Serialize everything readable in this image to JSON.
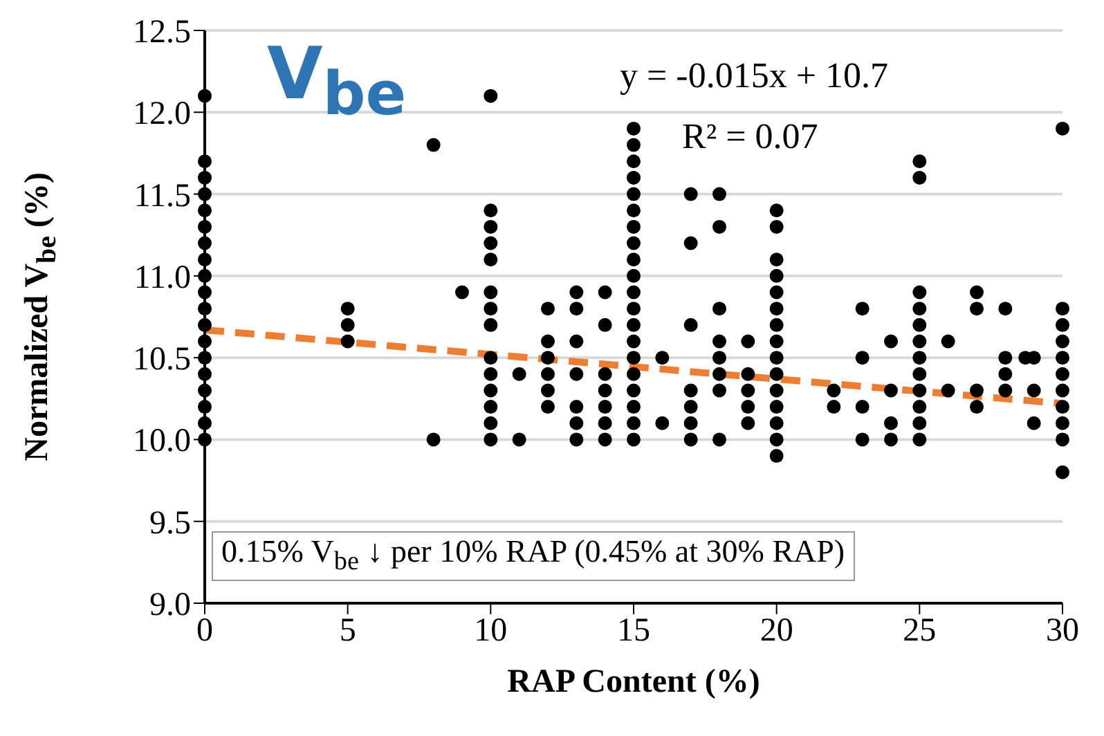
{
  "chart_data": {
    "type": "scatter",
    "xlabel": "RAP Content (%)",
    "ylabel": "Normalized  V$_{be}$ (%)",
    "xlim": [
      0,
      30
    ],
    "xticks": [
      0,
      5,
      10,
      15,
      20,
      25,
      30
    ],
    "ylim": [
      9.0,
      12.5
    ],
    "yticks": [
      {
        "value": 9.0,
        "label": "9.0"
      },
      {
        "value": 9.5,
        "label": "9.5"
      },
      {
        "value": 10.0,
        "label": "10.0"
      },
      {
        "value": 10.5,
        "label": "10.5"
      },
      {
        "value": 11.0,
        "label": "11.0"
      },
      {
        "value": 11.5,
        "label": "11.5"
      },
      {
        "value": 12.0,
        "label": "12.0"
      },
      {
        "value": 12.5,
        "label": "12.5"
      }
    ],
    "grid": "y",
    "marker": "circle",
    "annotations": [
      "V$_{be}$",
      "y = -0.015x  + 10.7",
      "R² = 0.07",
      "0.15% V$_{be}$ ↓ per 10% RAP (0.45% at 30% RAP)"
    ],
    "series": [
      {
        "color": "#000000",
        "x": [
          0,
          0,
          0,
          0,
          0,
          0,
          0,
          0,
          0,
          0,
          0,
          0,
          0,
          0,
          0,
          0,
          0,
          0,
          0,
          5,
          5,
          5,
          8,
          8,
          9,
          10,
          10,
          10,
          10,
          10,
          10,
          10,
          10,
          10,
          10,
          10,
          10,
          10,
          10,
          11,
          11,
          12,
          12,
          12,
          12,
          12,
          12,
          13,
          13,
          13,
          13,
          13,
          13,
          13,
          14,
          14,
          14,
          14,
          14,
          14,
          14,
          15,
          15,
          15,
          15,
          15,
          15,
          15,
          15,
          15,
          15,
          15,
          15,
          15,
          15,
          15,
          15,
          15,
          15,
          15,
          15,
          16,
          16,
          17,
          17,
          17,
          17,
          17,
          17,
          17,
          18,
          18,
          18,
          18,
          18,
          18,
          18,
          18,
          19,
          19,
          19,
          19,
          19,
          20,
          20,
          20,
          20,
          20,
          20,
          20,
          20,
          20,
          20,
          20,
          20,
          20,
          20,
          20,
          22,
          22,
          23,
          23,
          23,
          23,
          24,
          24,
          24,
          24,
          25,
          25,
          25,
          25,
          25,
          25,
          25,
          25,
          25,
          25,
          25,
          25,
          26,
          26,
          27,
          27,
          27,
          27,
          28,
          28,
          28,
          28,
          28.7,
          29,
          29,
          29,
          30,
          30,
          30,
          30,
          30,
          30,
          30,
          30,
          30,
          30,
          30
        ],
        "values": [
          10.0,
          10.1,
          10.2,
          10.3,
          10.4,
          10.5,
          10.6,
          10.7,
          10.8,
          10.9,
          11.0,
          11.1,
          11.2,
          11.3,
          11.4,
          11.5,
          11.6,
          11.7,
          12.1,
          10.6,
          10.7,
          10.8,
          10.0,
          11.8,
          10.9,
          10.0,
          10.1,
          10.2,
          10.3,
          10.4,
          10.5,
          10.7,
          10.8,
          10.9,
          11.1,
          11.2,
          11.3,
          11.4,
          12.1,
          10.0,
          10.4,
          10.2,
          10.3,
          10.4,
          10.5,
          10.6,
          10.8,
          10.0,
          10.1,
          10.2,
          10.4,
          10.6,
          10.8,
          10.9,
          10.0,
          10.1,
          10.2,
          10.3,
          10.4,
          10.7,
          10.9,
          10.0,
          10.1,
          10.2,
          10.3,
          10.4,
          10.5,
          10.6,
          10.7,
          10.8,
          10.9,
          11.0,
          11.1,
          11.2,
          11.3,
          11.4,
          11.5,
          11.6,
          11.7,
          11.8,
          11.9,
          10.1,
          10.5,
          10.0,
          10.1,
          10.2,
          10.3,
          10.7,
          11.2,
          11.5,
          10.0,
          10.3,
          10.4,
          10.5,
          10.6,
          10.8,
          11.3,
          11.5,
          10.1,
          10.2,
          10.3,
          10.4,
          10.6,
          9.9,
          10.0,
          10.1,
          10.2,
          10.3,
          10.4,
          10.5,
          10.6,
          10.7,
          10.8,
          10.9,
          11.0,
          11.1,
          11.3,
          11.4,
          10.2,
          10.3,
          10.0,
          10.2,
          10.5,
          10.8,
          10.0,
          10.1,
          10.3,
          10.6,
          10.0,
          10.1,
          10.2,
          10.3,
          10.4,
          10.5,
          10.6,
          10.7,
          10.8,
          10.9,
          11.6,
          11.7,
          10.3,
          10.6,
          10.2,
          10.3,
          10.8,
          10.9,
          10.3,
          10.4,
          10.5,
          10.8,
          10.5,
          10.1,
          10.3,
          10.5,
          9.8,
          10.0,
          10.1,
          10.2,
          10.3,
          10.4,
          10.5,
          10.6,
          10.7,
          10.8,
          11.9
        ]
      },
      {
        "type": "line",
        "color": "#ed7d31",
        "line_style": "dashed",
        "marker": "none",
        "x": [
          0,
          30
        ],
        "values": [
          10.67,
          10.22
        ]
      }
    ]
  }
}
